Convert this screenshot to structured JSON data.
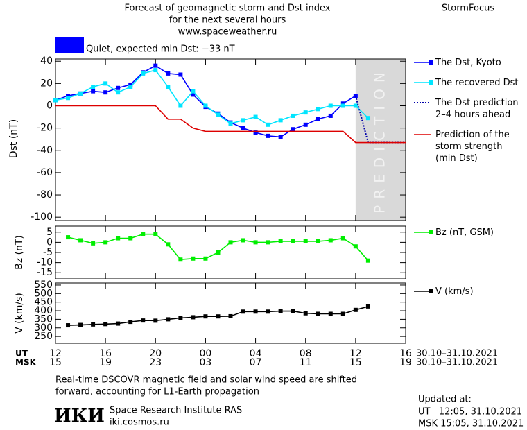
{
  "header": {
    "title_lines": [
      "Forecast of geomagnetic storm and Dst index",
      "for the next several hours",
      "www.spaceweather.ru"
    ],
    "brand": "StormFocus"
  },
  "status": {
    "label": "Quiet, expected min Dst: −33 nT",
    "color": "#0000ff"
  },
  "chart_data": [
    {
      "type": "line",
      "y_label": "Dst (nT)",
      "xlim": [
        12,
        40
      ],
      "ylim": [
        -103,
        42
      ],
      "yticks": [
        40,
        20,
        0,
        -20,
        -40,
        -60,
        -80,
        -100
      ],
      "prediction_region": {
        "x": [
          36,
          40
        ],
        "label": "PREDICTION"
      },
      "series": [
        {
          "name": "The Dst, Kyoto",
          "color": "#0000ff",
          "marker": "square",
          "x": [
            12,
            13,
            14,
            15,
            16,
            17,
            18,
            19,
            20,
            21,
            22,
            23,
            24,
            25,
            26,
            27,
            28,
            29,
            30,
            31,
            32,
            33,
            34,
            35,
            36
          ],
          "values": [
            5,
            9,
            11,
            13,
            12,
            16,
            19,
            30,
            36,
            29,
            28,
            10,
            -1,
            -7,
            -15,
            -20,
            -24,
            -27,
            -28,
            -21,
            -17,
            -12,
            -9,
            2,
            9
          ]
        },
        {
          "name": "The recovered Dst",
          "color": "#00e5ff",
          "marker": "square",
          "x": [
            12,
            13,
            14,
            15,
            16,
            17,
            18,
            19,
            20,
            21,
            22,
            23,
            24,
            25,
            26,
            27,
            28,
            29,
            30,
            31,
            32,
            33,
            34,
            35,
            36,
            37
          ],
          "values": [
            5,
            7,
            11,
            17,
            20,
            12,
            17,
            29,
            32,
            17,
            0,
            13,
            0,
            -8,
            -16,
            -13,
            -10,
            -17,
            -13,
            -9,
            -6,
            -3,
            0,
            0,
            0,
            -11
          ]
        },
        {
          "name": "The Dst prediction\n2–4 hours ahead",
          "color": "#0000aa",
          "dash": true,
          "x": [
            36,
            37,
            40
          ],
          "values": [
            9,
            -33,
            -33
          ]
        },
        {
          "name": "Prediction of the\nstorm strength\n(min Dst)",
          "color": "#dd0000",
          "x": [
            12,
            20,
            21,
            22,
            23,
            24,
            35,
            36,
            40
          ],
          "values": [
            0,
            0,
            -12,
            -12,
            -20,
            -23,
            -23,
            -33,
            -33
          ]
        }
      ]
    },
    {
      "type": "line",
      "y_label": "Bz (nT)",
      "xlim": [
        12,
        40
      ],
      "ylim": [
        -18,
        8
      ],
      "yticks": [
        5,
        0,
        -5,
        -10,
        -15
      ],
      "series": [
        {
          "name": "Bz (nT, GSM)",
          "color": "#00ee00",
          "marker": "square",
          "x": [
            13,
            14,
            15,
            16,
            17,
            18,
            19,
            20,
            21,
            22,
            23,
            24,
            25,
            26,
            27,
            28,
            29,
            30,
            31,
            32,
            33,
            34,
            35,
            36,
            37
          ],
          "values": [
            2.5,
            1,
            -0.5,
            0,
            2,
            2,
            4,
            4,
            -1,
            -8.5,
            -8,
            -8,
            -5,
            0,
            1,
            0,
            0,
            0.5,
            0.5,
            0.5,
            0.5,
            1,
            2,
            -2,
            -9
          ]
        }
      ]
    },
    {
      "type": "line",
      "y_label": "V (km/s)",
      "xlim": [
        12,
        40
      ],
      "ylim": [
        210,
        562
      ],
      "yticks": [
        550,
        500,
        450,
        400,
        350,
        300,
        250
      ],
      "xticks_title": "UT",
      "xticks_msk_title": "MSK",
      "date_range": "30.10–31.10.2021",
      "xticks": [
        {
          "value": 12,
          "label": "12"
        },
        {
          "value": 16,
          "label": "16"
        },
        {
          "value": 20,
          "label": "20"
        },
        {
          "value": 24,
          "label": "00"
        },
        {
          "value": 28,
          "label": "04"
        },
        {
          "value": 32,
          "label": "08"
        },
        {
          "value": 36,
          "label": "12"
        },
        {
          "value": 40,
          "label": "16"
        }
      ],
      "xticks_msk": [
        {
          "value": 12,
          "label": "15"
        },
        {
          "value": 16,
          "label": "19"
        },
        {
          "value": 20,
          "label": "23"
        },
        {
          "value": 24,
          "label": "03"
        },
        {
          "value": 28,
          "label": "07"
        },
        {
          "value": 32,
          "label": "11"
        },
        {
          "value": 36,
          "label": "15"
        },
        {
          "value": 40,
          "label": "19"
        }
      ],
      "series": [
        {
          "name": "V (km/s)",
          "color": "#000000",
          "marker": "square",
          "x": [
            13,
            14,
            15,
            16,
            17,
            18,
            19,
            20,
            21,
            22,
            23,
            24,
            25,
            26,
            27,
            28,
            29,
            30,
            31,
            32,
            33,
            34,
            35,
            36,
            37
          ],
          "values": [
            315,
            317,
            320,
            322,
            325,
            335,
            343,
            342,
            350,
            358,
            362,
            367,
            367,
            368,
            395,
            395,
            395,
            398,
            398,
            385,
            382,
            382,
            382,
            405,
            425
          ]
        }
      ]
    }
  ],
  "footer": {
    "note_lines": [
      "Real-time DSCOVR magnetic field and solar wind speed are shifted",
      "forward, accounting for L1-Earth propagation"
    ],
    "logo": "ИКИ",
    "institute": "Space Research Institute RAS",
    "site": "iki.cosmos.ru",
    "updated_title": "Updated at:",
    "updated_ut": "UT   12:05, 31.10.2021",
    "updated_msk": "MSK 15:05, 31.10.2021"
  }
}
